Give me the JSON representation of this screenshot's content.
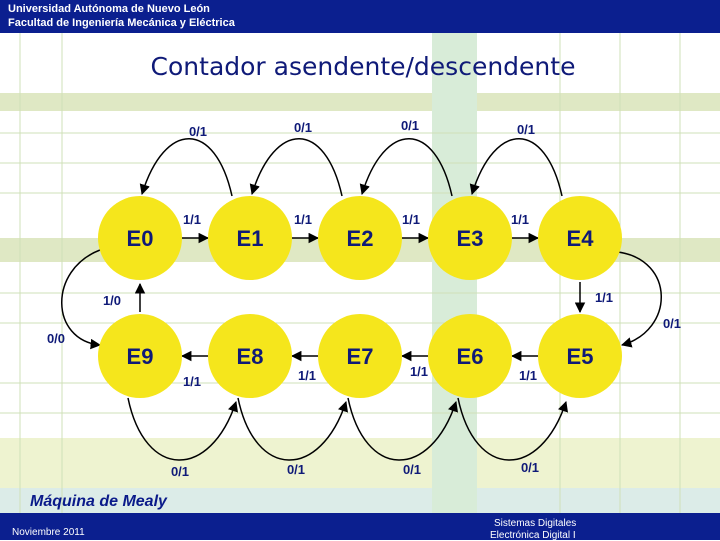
{
  "header": {
    "university": "Universidad Autónoma de Nuevo León",
    "faculty": "Facultad de Ingeniería Mecánica y Eléctrica"
  },
  "title": "Contador asendente/descendente",
  "states_top": [
    "E0",
    "E1",
    "E2",
    "E3",
    "E4"
  ],
  "states_bottom": [
    "E9",
    "E8",
    "E7",
    "E6",
    "E5"
  ],
  "labels": {
    "forward_top": [
      "1/1",
      "1/1",
      "1/1",
      "1/1"
    ],
    "back_top": [
      "0/1",
      "0/1",
      "0/1",
      "0/1"
    ],
    "e4_to_e5": "1/1",
    "e4_e5_outer": "0/1",
    "forward_bottom": [
      "1/1",
      "1/1",
      "1/1",
      "1/1"
    ],
    "back_bottom": [
      "0/1",
      "0/1",
      "0/1",
      "0/1"
    ],
    "e9_to_e0": "1/0",
    "e0_e9_outer": "0/0"
  },
  "mealy_label": "Máquina de Mealy",
  "footer": {
    "date": "Noviembre 2011",
    "course_line1": "Sistemas Digitales",
    "course_line2": "Electrónica Digital I"
  },
  "colors": {
    "state_fill": "#f5e61c",
    "header_bg": "#0b1f8f",
    "title_color": "#0f1a78",
    "arrow_color": "#000000"
  }
}
